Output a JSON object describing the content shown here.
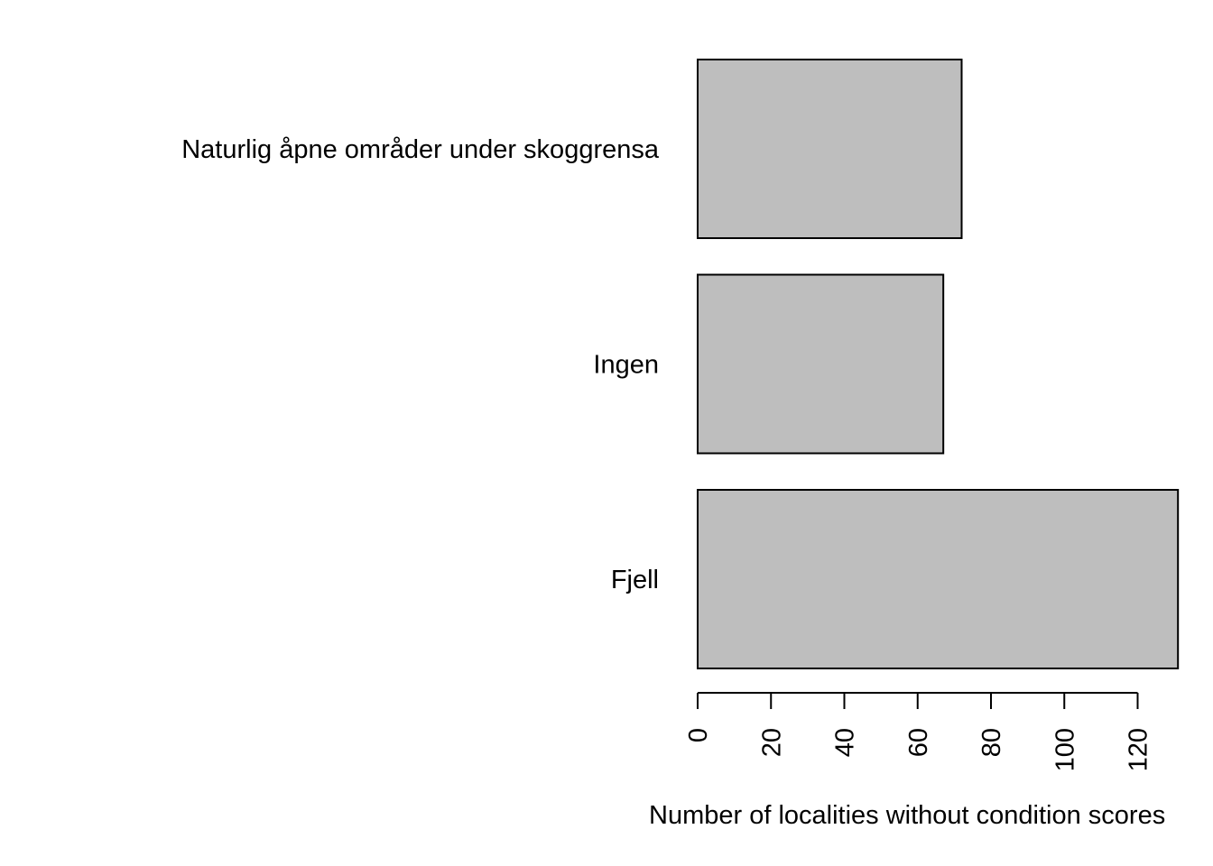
{
  "chart_data": {
    "type": "bar",
    "orientation": "horizontal",
    "categories": [
      "Fjell",
      "Ingen",
      "Naturlig åpne områder under skoggrensa"
    ],
    "values": [
      131,
      67,
      72
    ],
    "xlabel": "Number of localities without condition scores",
    "ylabel": "",
    "xlim": [
      0,
      131
    ],
    "xticks": [
      0,
      20,
      40,
      60,
      80,
      100,
      120
    ],
    "xtick_labels": [
      "0",
      "20",
      "40",
      "60",
      "80",
      "100",
      "120"
    ],
    "grid": false,
    "bar_fill": "#bebebe",
    "bar_stroke": "#000000"
  }
}
